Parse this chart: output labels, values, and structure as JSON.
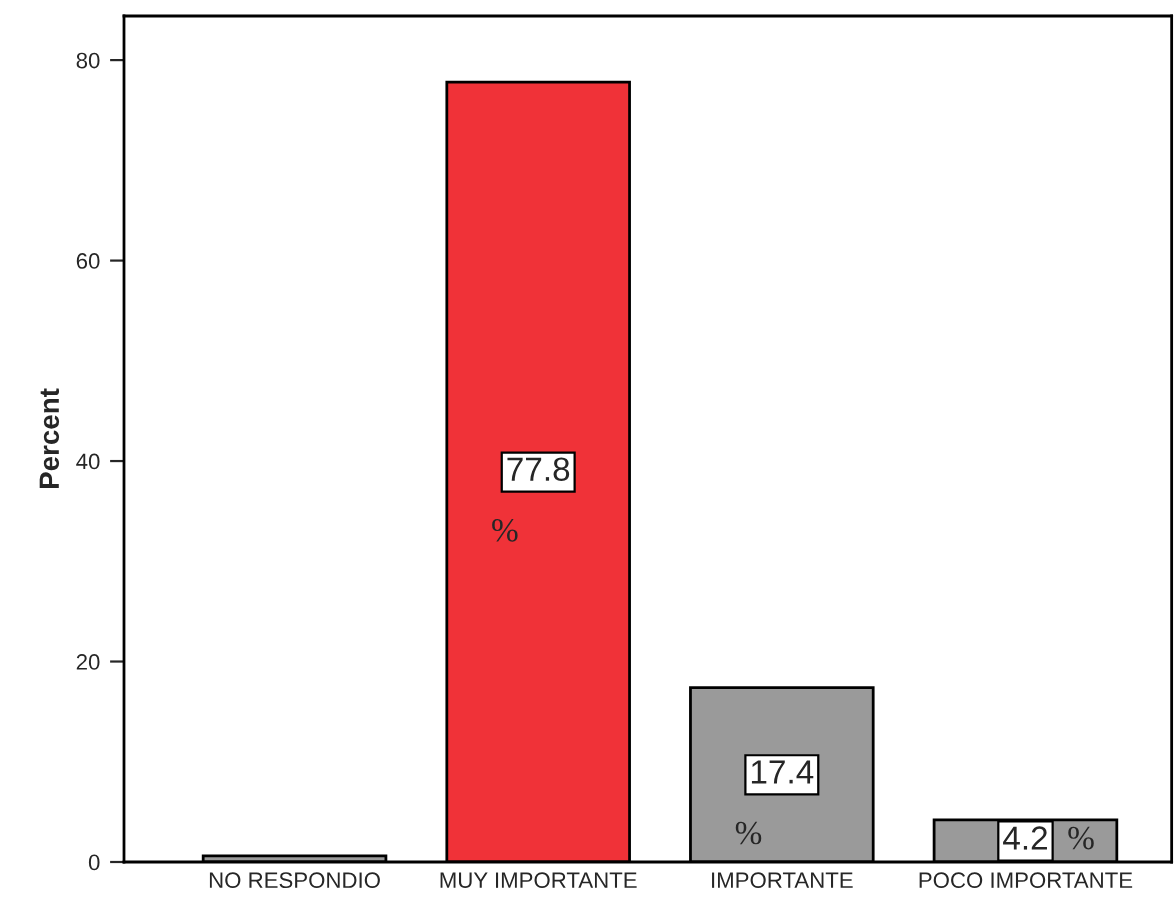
{
  "chart_data": {
    "type": "bar",
    "ylabel": "Percent",
    "categories": [
      "NO RESPONDIO",
      "MUY IMPORTANTE",
      "IMPORTANTE",
      "POCO IMPORTANTE"
    ],
    "values": [
      0.6,
      77.8,
      17.4,
      4.2
    ],
    "colors": [
      "#9a9a9a",
      "#f03238",
      "#9a9a9a",
      "#9a9a9a"
    ],
    "value_labels": [
      null,
      "77.8\n%",
      "17.4\n%",
      "4.2\n%"
    ],
    "ylim": [
      0,
      84.4
    ],
    "yticks": [
      0,
      20,
      40,
      60,
      80
    ],
    "grid": false,
    "legend": false
  }
}
